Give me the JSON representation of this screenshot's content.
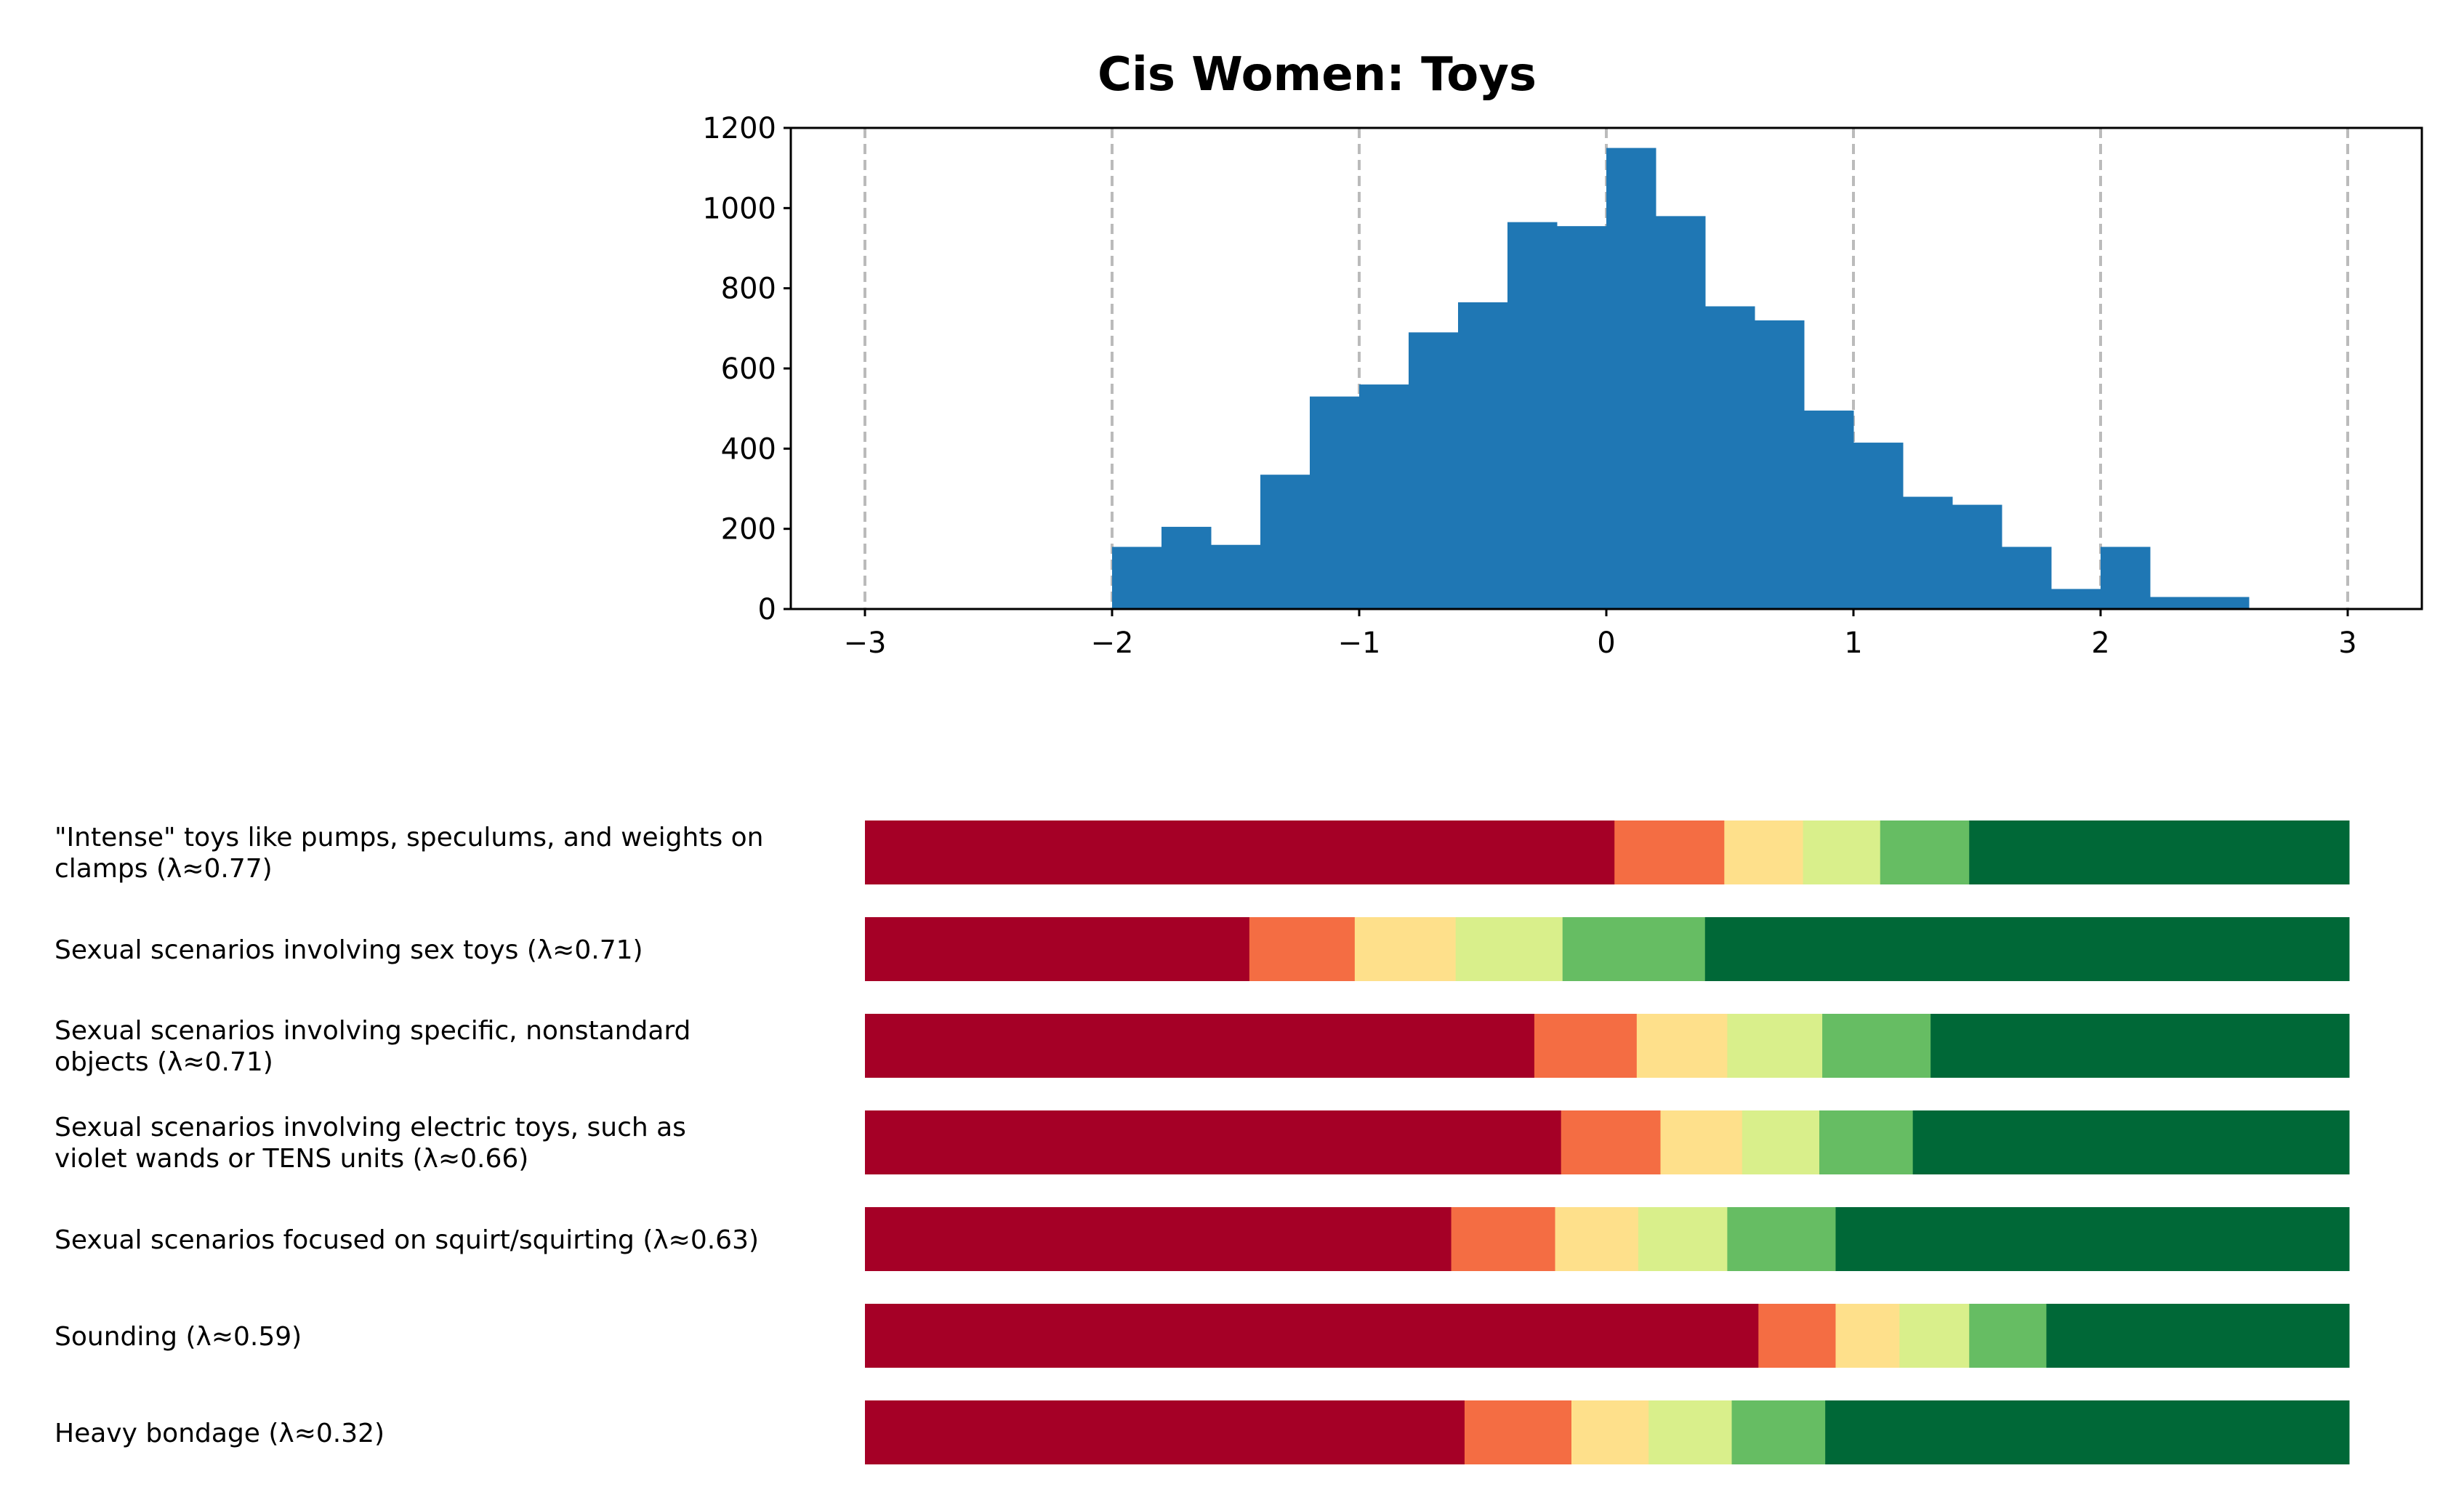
{
  "title": "Cis Women: Toys",
  "colors": {
    "hist_bar": "#1f77b4",
    "gridline": "#bbbbbb",
    "scale": [
      "#a50026",
      "#f46d43",
      "#fee08b",
      "#d9ef8b",
      "#66bd63",
      "#006837"
    ]
  },
  "chart_data": [
    {
      "type": "bar",
      "subtype": "histogram",
      "title": "Cis Women: Toys",
      "xlabel": "",
      "ylabel": "",
      "xlim": [
        -3.3,
        3.3
      ],
      "ylim": [
        0,
        1200
      ],
      "xticks": [
        -3,
        -2,
        -1,
        0,
        1,
        2,
        3
      ],
      "xtick_labels": [
        "−3",
        "−2",
        "−1",
        "0",
        "1",
        "2",
        "3"
      ],
      "yticks": [
        0,
        200,
        400,
        600,
        800,
        1000,
        1200
      ],
      "ytick_labels": [
        "0",
        "200",
        "400",
        "600",
        "800",
        "1000",
        "1200"
      ],
      "vertical_gridlines_dashed": [
        -3,
        -2,
        -1,
        0,
        1,
        2,
        3
      ],
      "bin_edges": [
        -2.0,
        -1.8,
        -1.6,
        -1.4,
        -1.2,
        -1.0,
        -0.8,
        -0.6,
        -0.4,
        -0.2,
        0.0,
        0.2,
        0.4,
        0.6,
        0.8,
        1.0,
        1.2,
        1.4,
        1.6,
        1.8,
        2.0,
        2.2,
        2.4,
        2.6
      ],
      "counts": [
        155,
        205,
        160,
        335,
        530,
        560,
        690,
        765,
        965,
        955,
        1150,
        980,
        755,
        720,
        495,
        415,
        280,
        260,
        155,
        50,
        155,
        30,
        30
      ]
    },
    {
      "type": "bar",
      "subtype": "stacked-horizontal-100",
      "series_count": 6,
      "items": [
        {
          "label": "\"Intense\" toys like pumps, speculums, and weights on clamps (λ≈0.77)",
          "shares": [
            0.505,
            0.074,
            0.053,
            0.052,
            0.06,
            0.256
          ]
        },
        {
          "label": "Sexual scenarios involving sex toys (λ≈0.71)",
          "shares": [
            0.259,
            0.071,
            0.068,
            0.072,
            0.096,
            0.434
          ]
        },
        {
          "label": "Sexual scenarios involving specific, nonstandard objects (λ≈0.71)",
          "shares": [
            0.451,
            0.069,
            0.061,
            0.064,
            0.073,
            0.282
          ]
        },
        {
          "label": "Sexual scenarios involving electric toys, such as violet wands or TENS units (λ≈0.66)",
          "shares": [
            0.469,
            0.067,
            0.055,
            0.052,
            0.063,
            0.294
          ]
        },
        {
          "label": "Sexual scenarios focused on squirt/squirting (λ≈0.63)",
          "shares": [
            0.395,
            0.07,
            0.056,
            0.06,
            0.073,
            0.346
          ]
        },
        {
          "label": "Sounding (λ≈0.59)",
          "shares": [
            0.602,
            0.052,
            0.043,
            0.047,
            0.052,
            0.204
          ]
        },
        {
          "label": "Heavy bondage (λ≈0.32)",
          "shares": [
            0.404,
            0.072,
            0.052,
            0.056,
            0.063,
            0.353
          ]
        }
      ]
    }
  ]
}
